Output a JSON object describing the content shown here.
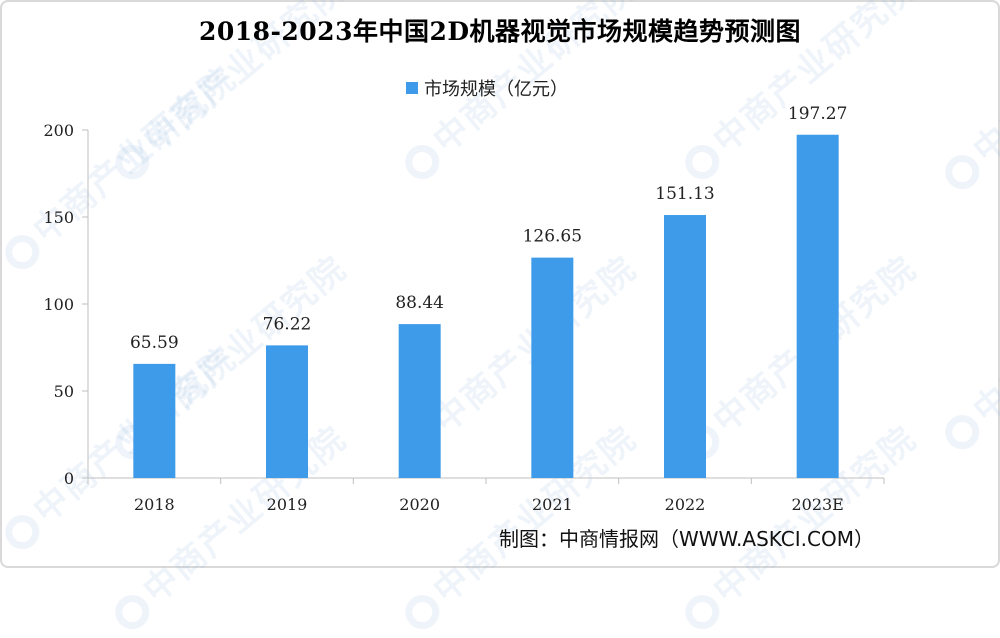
{
  "watermark_text": "中商产业研究院",
  "footer": {
    "source": "制图：中商情报网（WWW.ASKCI.COM）"
  },
  "colors": {
    "bar": "#3d9be9",
    "axis": "#bfbfbf"
  },
  "chart_data": {
    "type": "bar",
    "title": "2018-2023年中国2D机器视觉市场规模趋势预测图",
    "categories": [
      "2018",
      "2019",
      "2020",
      "2021",
      "2022",
      "2023E"
    ],
    "series": [
      {
        "name": "市场规模（亿元）",
        "values": [
          65.59,
          76.22,
          88.44,
          126.65,
          151.13,
          197.27
        ]
      }
    ],
    "data_labels": [
      "65.59",
      "76.22",
      "88.44",
      "126.65",
      "151.13",
      "197.27"
    ],
    "yticks": [
      "0",
      "50",
      "100",
      "150",
      "200"
    ],
    "xlabel": "",
    "ylabel": "",
    "ylim": [
      0,
      200
    ],
    "grid": false,
    "legend_position": "top"
  }
}
